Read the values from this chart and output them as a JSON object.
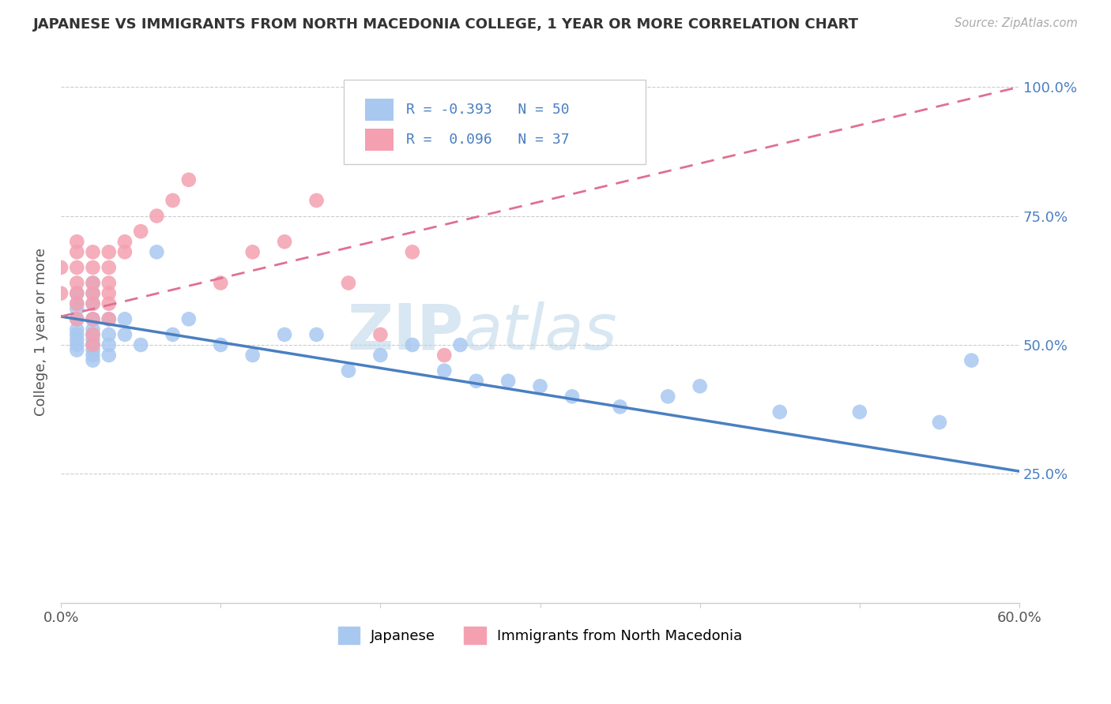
{
  "title": "JAPANESE VS IMMIGRANTS FROM NORTH MACEDONIA COLLEGE, 1 YEAR OR MORE CORRELATION CHART",
  "source": "Source: ZipAtlas.com",
  "ylabel": "College, 1 year or more",
  "xlim": [
    0.0,
    0.6
  ],
  "ylim": [
    0.0,
    1.05
  ],
  "xticks": [
    0.0,
    0.1,
    0.2,
    0.3,
    0.4,
    0.5,
    0.6
  ],
  "xticklabels": [
    "0.0%",
    "",
    "",
    "",
    "",
    "",
    "60.0%"
  ],
  "yticks": [
    0.25,
    0.5,
    0.75,
    1.0
  ],
  "yticklabels": [
    "25.0%",
    "50.0%",
    "75.0%",
    "100.0%"
  ],
  "color_blue": "#a8c8f0",
  "color_pink": "#f4a0b0",
  "line_color_blue": "#4a7fc1",
  "line_color_pink": "#e07090",
  "watermark_zip": "ZIP",
  "watermark_atlas": "atlas",
  "grid_color": "#cccccc",
  "japanese_x": [
    0.01,
    0.01,
    0.01,
    0.01,
    0.01,
    0.01,
    0.01,
    0.01,
    0.01,
    0.02,
    0.02,
    0.02,
    0.02,
    0.02,
    0.02,
    0.02,
    0.02,
    0.02,
    0.02,
    0.02,
    0.03,
    0.03,
    0.03,
    0.03,
    0.04,
    0.04,
    0.05,
    0.06,
    0.07,
    0.08,
    0.1,
    0.12,
    0.14,
    0.16,
    0.18,
    0.2,
    0.22,
    0.24,
    0.25,
    0.26,
    0.28,
    0.3,
    0.32,
    0.35,
    0.38,
    0.4,
    0.45,
    0.5,
    0.55,
    0.57
  ],
  "japanese_y": [
    0.6,
    0.58,
    0.57,
    0.55,
    0.53,
    0.52,
    0.51,
    0.5,
    0.49,
    0.62,
    0.6,
    0.58,
    0.55,
    0.53,
    0.52,
    0.51,
    0.5,
    0.49,
    0.48,
    0.47,
    0.55,
    0.52,
    0.5,
    0.48,
    0.55,
    0.52,
    0.5,
    0.68,
    0.52,
    0.55,
    0.5,
    0.48,
    0.52,
    0.52,
    0.45,
    0.48,
    0.5,
    0.45,
    0.5,
    0.43,
    0.43,
    0.42,
    0.4,
    0.38,
    0.4,
    0.42,
    0.37,
    0.37,
    0.35,
    0.47
  ],
  "macedonia_x": [
    0.0,
    0.0,
    0.01,
    0.01,
    0.01,
    0.01,
    0.01,
    0.01,
    0.01,
    0.02,
    0.02,
    0.02,
    0.02,
    0.02,
    0.02,
    0.02,
    0.02,
    0.03,
    0.03,
    0.03,
    0.03,
    0.03,
    0.03,
    0.04,
    0.04,
    0.05,
    0.06,
    0.07,
    0.08,
    0.1,
    0.12,
    0.14,
    0.16,
    0.18,
    0.2,
    0.22,
    0.24
  ],
  "macedonia_y": [
    0.65,
    0.6,
    0.7,
    0.68,
    0.65,
    0.62,
    0.6,
    0.58,
    0.55,
    0.68,
    0.65,
    0.62,
    0.6,
    0.58,
    0.55,
    0.52,
    0.5,
    0.68,
    0.65,
    0.62,
    0.6,
    0.58,
    0.55,
    0.7,
    0.68,
    0.72,
    0.75,
    0.78,
    0.82,
    0.62,
    0.68,
    0.7,
    0.78,
    0.62,
    0.52,
    0.68,
    0.48
  ],
  "blue_line_x0": 0.0,
  "blue_line_y0": 0.555,
  "blue_line_x1": 0.6,
  "blue_line_y1": 0.255,
  "pink_line_x0": 0.0,
  "pink_line_y0": 0.555,
  "pink_line_x1": 0.6,
  "pink_line_y1": 1.0
}
